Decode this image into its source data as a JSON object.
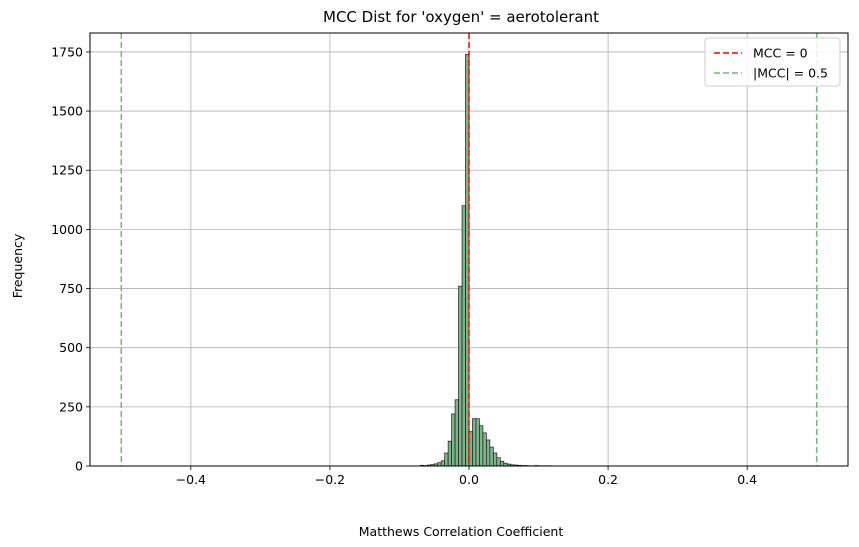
{
  "chart_data": {
    "type": "bar",
    "title": "MCC Dist for 'oxygen' = aerotolerant",
    "xlabel": "Matthews Correlation Coefficient",
    "ylabel": "Frequency",
    "xlim": [
      -0.545,
      0.545
    ],
    "ylim": [
      0,
      1830
    ],
    "xticks": [
      -0.4,
      -0.2,
      0.0,
      0.2,
      0.4
    ],
    "xtick_labels": [
      "−0.4",
      "−0.2",
      "0.0",
      "0.2",
      "0.4"
    ],
    "yticks": [
      0,
      250,
      500,
      750,
      1000,
      1250,
      1500,
      1750
    ],
    "ytick_labels": [
      "0",
      "250",
      "500",
      "750",
      "1000",
      "1250",
      "1500",
      "1750"
    ],
    "grid": true,
    "legend_position": "top-right",
    "bin_width": 0.005,
    "bin_starts": [
      -0.07,
      -0.065,
      -0.06,
      -0.055,
      -0.05,
      -0.045,
      -0.04,
      -0.035,
      -0.03,
      -0.025,
      -0.02,
      -0.015,
      -0.01,
      -0.005,
      0.0,
      0.005,
      0.01,
      0.015,
      0.02,
      0.025,
      0.03,
      0.035,
      0.04,
      0.045,
      0.05,
      0.055,
      0.06,
      0.065,
      0.07,
      0.075,
      0.08,
      0.085,
      0.09,
      0.095,
      0.1,
      0.105,
      0.11,
      0.115
    ],
    "values": [
      3,
      2,
      4,
      6,
      9,
      14,
      22,
      55,
      105,
      220,
      280,
      760,
      1100,
      1740,
      145,
      200,
      200,
      170,
      140,
      110,
      80,
      55,
      35,
      20,
      12,
      8,
      5,
      4,
      3,
      2,
      2,
      1,
      1,
      2,
      1,
      1,
      1,
      1
    ],
    "bar_color": "#7db58a",
    "reference_lines": [
      {
        "x": 0.0,
        "color": "#ff0000",
        "style": "dashed",
        "label": "MCC = 0"
      },
      {
        "x": -0.5,
        "color": "#6cba7d",
        "style": "dashed",
        "label": "|MCC| = 0.5"
      },
      {
        "x": 0.5,
        "color": "#6cba7d",
        "style": "dashed",
        "label": ""
      }
    ],
    "legend": [
      {
        "label": "MCC = 0",
        "color": "#ff0000"
      },
      {
        "label": "|MCC| = 0.5",
        "color": "#6cba7d"
      }
    ]
  }
}
